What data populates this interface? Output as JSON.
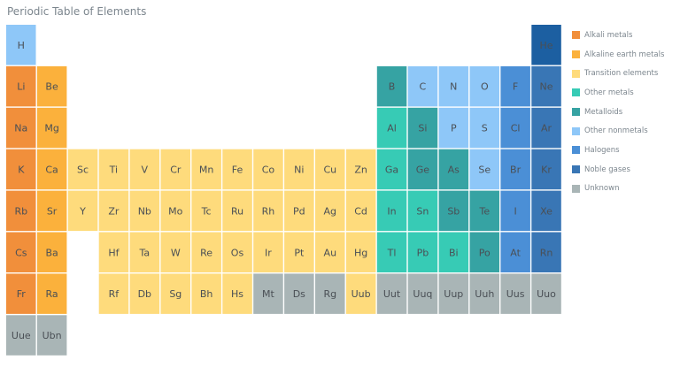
{
  "chart_data": {
    "type": "heatmap",
    "title": "Periodic Table of Elements",
    "categories": [
      {
        "key": "alkali",
        "label": "Alkali metals",
        "color": "#f18f3b"
      },
      {
        "key": "alkaline",
        "label": "Alkaline earth metals",
        "color": "#fbb13c"
      },
      {
        "key": "transition",
        "label": "Transition elements",
        "color": "#fedb7c"
      },
      {
        "key": "othermetal",
        "label": "Other metals",
        "color": "#37cbb5"
      },
      {
        "key": "metalloid",
        "label": "Metalloids",
        "color": "#36a3a3"
      },
      {
        "key": "nonmetal",
        "label": "Other nonmetals",
        "color": "#8ec7f8"
      },
      {
        "key": "halogen",
        "label": "Halogens",
        "color": "#4b8fd6"
      },
      {
        "key": "noble",
        "label": "Noble gases",
        "color": "#3976b5"
      },
      {
        "key": "unknown",
        "label": "Unknown",
        "color": "#a9b5b6"
      }
    ],
    "elements": [
      {
        "s": "H",
        "col": 1,
        "row": 1,
        "cat": "nonmetal"
      },
      {
        "s": "He",
        "col": 18,
        "row": 1,
        "cat": "noble",
        "color": "#1c5fa1"
      },
      {
        "s": "Li",
        "col": 1,
        "row": 2,
        "cat": "alkali"
      },
      {
        "s": "Be",
        "col": 2,
        "row": 2,
        "cat": "alkaline"
      },
      {
        "s": "B",
        "col": 13,
        "row": 2,
        "cat": "metalloid"
      },
      {
        "s": "C",
        "col": 14,
        "row": 2,
        "cat": "nonmetal"
      },
      {
        "s": "N",
        "col": 15,
        "row": 2,
        "cat": "nonmetal"
      },
      {
        "s": "O",
        "col": 16,
        "row": 2,
        "cat": "nonmetal"
      },
      {
        "s": "F",
        "col": 17,
        "row": 2,
        "cat": "halogen"
      },
      {
        "s": "Ne",
        "col": 18,
        "row": 2,
        "cat": "noble"
      },
      {
        "s": "Na",
        "col": 1,
        "row": 3,
        "cat": "alkali"
      },
      {
        "s": "Mg",
        "col": 2,
        "row": 3,
        "cat": "alkaline"
      },
      {
        "s": "Al",
        "col": 13,
        "row": 3,
        "cat": "othermetal"
      },
      {
        "s": "Si",
        "col": 14,
        "row": 3,
        "cat": "metalloid"
      },
      {
        "s": "P",
        "col": 15,
        "row": 3,
        "cat": "nonmetal"
      },
      {
        "s": "S",
        "col": 16,
        "row": 3,
        "cat": "nonmetal"
      },
      {
        "s": "Cl",
        "col": 17,
        "row": 3,
        "cat": "halogen"
      },
      {
        "s": "Ar",
        "col": 18,
        "row": 3,
        "cat": "noble"
      },
      {
        "s": "K",
        "col": 1,
        "row": 4,
        "cat": "alkali"
      },
      {
        "s": "Ca",
        "col": 2,
        "row": 4,
        "cat": "alkaline"
      },
      {
        "s": "Sc",
        "col": 3,
        "row": 4,
        "cat": "transition"
      },
      {
        "s": "Ti",
        "col": 4,
        "row": 4,
        "cat": "transition"
      },
      {
        "s": "V",
        "col": 5,
        "row": 4,
        "cat": "transition"
      },
      {
        "s": "Cr",
        "col": 6,
        "row": 4,
        "cat": "transition"
      },
      {
        "s": "Mn",
        "col": 7,
        "row": 4,
        "cat": "transition"
      },
      {
        "s": "Fe",
        "col": 8,
        "row": 4,
        "cat": "transition"
      },
      {
        "s": "Co",
        "col": 9,
        "row": 4,
        "cat": "transition"
      },
      {
        "s": "Ni",
        "col": 10,
        "row": 4,
        "cat": "transition"
      },
      {
        "s": "Cu",
        "col": 11,
        "row": 4,
        "cat": "transition"
      },
      {
        "s": "Zn",
        "col": 12,
        "row": 4,
        "cat": "transition"
      },
      {
        "s": "Ga",
        "col": 13,
        "row": 4,
        "cat": "othermetal"
      },
      {
        "s": "Ge",
        "col": 14,
        "row": 4,
        "cat": "metalloid"
      },
      {
        "s": "As",
        "col": 15,
        "row": 4,
        "cat": "metalloid"
      },
      {
        "s": "Se",
        "col": 16,
        "row": 4,
        "cat": "nonmetal"
      },
      {
        "s": "Br",
        "col": 17,
        "row": 4,
        "cat": "halogen"
      },
      {
        "s": "Kr",
        "col": 18,
        "row": 4,
        "cat": "noble"
      },
      {
        "s": "Rb",
        "col": 1,
        "row": 5,
        "cat": "alkali"
      },
      {
        "s": "Sr",
        "col": 2,
        "row": 5,
        "cat": "alkaline"
      },
      {
        "s": "Y",
        "col": 3,
        "row": 5,
        "cat": "transition"
      },
      {
        "s": "Zr",
        "col": 4,
        "row": 5,
        "cat": "transition"
      },
      {
        "s": "Nb",
        "col": 5,
        "row": 5,
        "cat": "transition"
      },
      {
        "s": "Mo",
        "col": 6,
        "row": 5,
        "cat": "transition"
      },
      {
        "s": "Tc",
        "col": 7,
        "row": 5,
        "cat": "transition"
      },
      {
        "s": "Ru",
        "col": 8,
        "row": 5,
        "cat": "transition"
      },
      {
        "s": "Rh",
        "col": 9,
        "row": 5,
        "cat": "transition"
      },
      {
        "s": "Pd",
        "col": 10,
        "row": 5,
        "cat": "transition"
      },
      {
        "s": "Ag",
        "col": 11,
        "row": 5,
        "cat": "transition"
      },
      {
        "s": "Cd",
        "col": 12,
        "row": 5,
        "cat": "transition"
      },
      {
        "s": "In",
        "col": 13,
        "row": 5,
        "cat": "othermetal"
      },
      {
        "s": "Sn",
        "col": 14,
        "row": 5,
        "cat": "othermetal"
      },
      {
        "s": "Sb",
        "col": 15,
        "row": 5,
        "cat": "metalloid"
      },
      {
        "s": "Te",
        "col": 16,
        "row": 5,
        "cat": "metalloid"
      },
      {
        "s": "I",
        "col": 17,
        "row": 5,
        "cat": "halogen"
      },
      {
        "s": "Xe",
        "col": 18,
        "row": 5,
        "cat": "noble"
      },
      {
        "s": "Cs",
        "col": 1,
        "row": 6,
        "cat": "alkali"
      },
      {
        "s": "Ba",
        "col": 2,
        "row": 6,
        "cat": "alkaline"
      },
      {
        "s": "Hf",
        "col": 4,
        "row": 6,
        "cat": "transition"
      },
      {
        "s": "Ta",
        "col": 5,
        "row": 6,
        "cat": "transition"
      },
      {
        "s": "W",
        "col": 6,
        "row": 6,
        "cat": "transition"
      },
      {
        "s": "Re",
        "col": 7,
        "row": 6,
        "cat": "transition"
      },
      {
        "s": "Os",
        "col": 8,
        "row": 6,
        "cat": "transition"
      },
      {
        "s": "Ir",
        "col": 9,
        "row": 6,
        "cat": "transition"
      },
      {
        "s": "Pt",
        "col": 10,
        "row": 6,
        "cat": "transition"
      },
      {
        "s": "Au",
        "col": 11,
        "row": 6,
        "cat": "transition"
      },
      {
        "s": "Hg",
        "col": 12,
        "row": 6,
        "cat": "transition"
      },
      {
        "s": "Tl",
        "col": 13,
        "row": 6,
        "cat": "othermetal"
      },
      {
        "s": "Pb",
        "col": 14,
        "row": 6,
        "cat": "othermetal"
      },
      {
        "s": "Bi",
        "col": 15,
        "row": 6,
        "cat": "othermetal"
      },
      {
        "s": "Po",
        "col": 16,
        "row": 6,
        "cat": "metalloid"
      },
      {
        "s": "At",
        "col": 17,
        "row": 6,
        "cat": "halogen"
      },
      {
        "s": "Rn",
        "col": 18,
        "row": 6,
        "cat": "noble"
      },
      {
        "s": "Fr",
        "col": 1,
        "row": 7,
        "cat": "alkali"
      },
      {
        "s": "Ra",
        "col": 2,
        "row": 7,
        "cat": "alkaline"
      },
      {
        "s": "Rf",
        "col": 4,
        "row": 7,
        "cat": "transition"
      },
      {
        "s": "Db",
        "col": 5,
        "row": 7,
        "cat": "transition"
      },
      {
        "s": "Sg",
        "col": 6,
        "row": 7,
        "cat": "transition"
      },
      {
        "s": "Bh",
        "col": 7,
        "row": 7,
        "cat": "transition"
      },
      {
        "s": "Hs",
        "col": 8,
        "row": 7,
        "cat": "transition"
      },
      {
        "s": "Mt",
        "col": 9,
        "row": 7,
        "cat": "unknown"
      },
      {
        "s": "Ds",
        "col": 10,
        "row": 7,
        "cat": "unknown"
      },
      {
        "s": "Rg",
        "col": 11,
        "row": 7,
        "cat": "unknown"
      },
      {
        "s": "Uub",
        "col": 12,
        "row": 7,
        "cat": "transition"
      },
      {
        "s": "Uut",
        "col": 13,
        "row": 7,
        "cat": "unknown"
      },
      {
        "s": "Uuq",
        "col": 14,
        "row": 7,
        "cat": "unknown"
      },
      {
        "s": "Uup",
        "col": 15,
        "row": 7,
        "cat": "unknown"
      },
      {
        "s": "Uuh",
        "col": 16,
        "row": 7,
        "cat": "unknown"
      },
      {
        "s": "Uus",
        "col": 17,
        "row": 7,
        "cat": "unknown"
      },
      {
        "s": "Uuo",
        "col": 18,
        "row": 7,
        "cat": "unknown"
      },
      {
        "s": "Uue",
        "col": 1,
        "row": 8,
        "cat": "unknown"
      },
      {
        "s": "Ubn",
        "col": 2,
        "row": 8,
        "cat": "unknown"
      }
    ],
    "legend_position": "right",
    "grid": false
  }
}
